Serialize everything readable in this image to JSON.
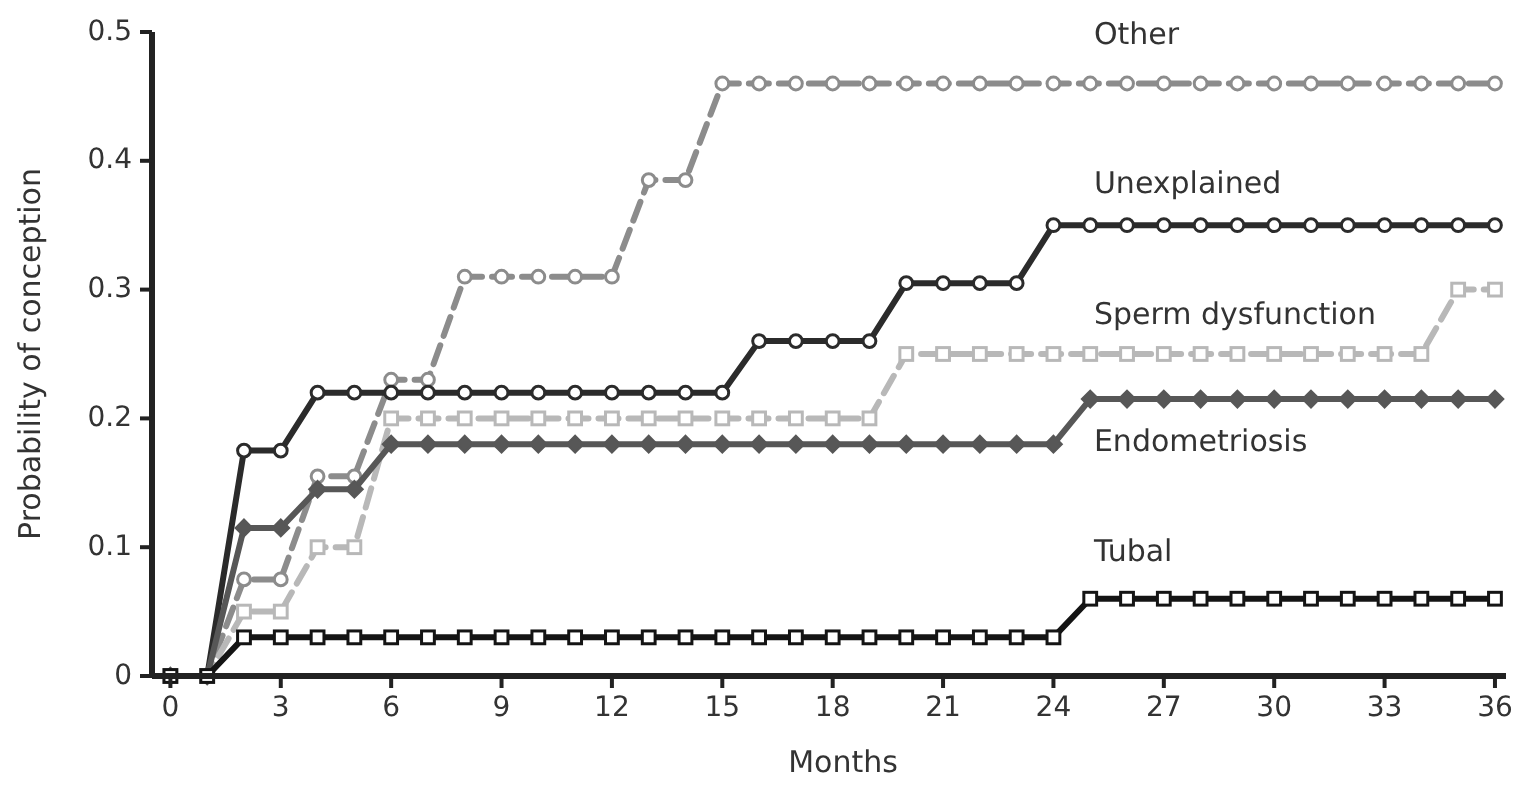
{
  "chart_data": {
    "type": "line",
    "xlabel": "Months",
    "ylabel": "Probability of conception",
    "x": [
      0,
      1,
      2,
      3,
      4,
      5,
      6,
      7,
      8,
      9,
      10,
      11,
      12,
      13,
      14,
      15,
      16,
      17,
      18,
      19,
      20,
      21,
      22,
      23,
      24,
      25,
      26,
      27,
      28,
      29,
      30,
      31,
      32,
      33,
      34,
      35,
      36
    ],
    "xlim": [
      -0.5,
      36.3
    ],
    "xticks": [
      0,
      3,
      6,
      9,
      12,
      15,
      18,
      21,
      24,
      27,
      30,
      33,
      36
    ],
    "ylim": [
      0,
      0.5
    ],
    "yticks": [
      0,
      0.1,
      0.2,
      0.3,
      0.4,
      0.5
    ],
    "grid": false,
    "series": [
      {
        "name": "Other",
        "color": "#8c8c8c",
        "marker": "circle",
        "line_style": "dashed",
        "values": [
          0,
          0,
          0.075,
          0.075,
          0.155,
          0.155,
          0.23,
          0.23,
          0.31,
          0.31,
          0.31,
          0.31,
          0.31,
          0.385,
          0.385,
          0.46,
          0.46,
          0.46,
          0.46,
          0.46,
          0.46,
          0.46,
          0.46,
          0.46,
          0.46,
          0.46,
          0.46,
          0.46,
          0.46,
          0.46,
          0.46,
          0.46,
          0.46,
          0.46,
          0.46,
          0.46,
          0.46
        ]
      },
      {
        "name": "Unexplained",
        "color": "#2b2b2b",
        "marker": "circle",
        "line_style": "solid",
        "values": [
          0,
          0,
          0.175,
          0.175,
          0.22,
          0.22,
          0.22,
          0.22,
          0.22,
          0.22,
          0.22,
          0.22,
          0.22,
          0.22,
          0.22,
          0.22,
          0.26,
          0.26,
          0.26,
          0.26,
          0.305,
          0.305,
          0.305,
          0.305,
          0.35,
          0.35,
          0.35,
          0.35,
          0.35,
          0.35,
          0.35,
          0.35,
          0.35,
          0.35,
          0.35,
          0.35,
          0.35
        ]
      },
      {
        "name": "Sperm dysfunction",
        "color": "#b8b8b8",
        "marker": "square",
        "line_style": "dashed",
        "values": [
          0,
          0,
          0.05,
          0.05,
          0.1,
          0.1,
          0.2,
          0.2,
          0.2,
          0.2,
          0.2,
          0.2,
          0.2,
          0.2,
          0.2,
          0.2,
          0.2,
          0.2,
          0.2,
          0.2,
          0.25,
          0.25,
          0.25,
          0.25,
          0.25,
          0.25,
          0.25,
          0.25,
          0.25,
          0.25,
          0.25,
          0.25,
          0.25,
          0.25,
          0.25,
          0.3,
          0.3
        ]
      },
      {
        "name": "Endometriosis",
        "color": "#575757",
        "marker": "diamond",
        "line_style": "solid",
        "values": [
          0,
          0,
          0.115,
          0.115,
          0.145,
          0.145,
          0.18,
          0.18,
          0.18,
          0.18,
          0.18,
          0.18,
          0.18,
          0.18,
          0.18,
          0.18,
          0.18,
          0.18,
          0.18,
          0.18,
          0.18,
          0.18,
          0.18,
          0.18,
          0.18,
          0.215,
          0.215,
          0.215,
          0.215,
          0.215,
          0.215,
          0.215,
          0.215,
          0.215,
          0.215,
          0.215,
          0.215
        ]
      },
      {
        "name": "Tubal",
        "color": "#141414",
        "marker": "square",
        "line_style": "solid",
        "values": [
          0,
          0,
          0.03,
          0.03,
          0.03,
          0.03,
          0.03,
          0.03,
          0.03,
          0.03,
          0.03,
          0.03,
          0.03,
          0.03,
          0.03,
          0.03,
          0.03,
          0.03,
          0.03,
          0.03,
          0.03,
          0.03,
          0.03,
          0.03,
          0.03,
          0.06,
          0.06,
          0.06,
          0.06,
          0.06,
          0.06,
          0.06,
          0.06,
          0.06,
          0.06,
          0.06,
          0.06
        ]
      }
    ]
  }
}
